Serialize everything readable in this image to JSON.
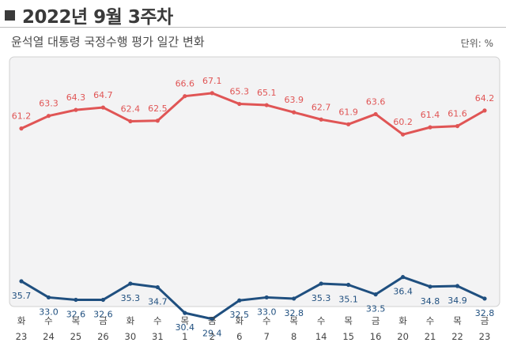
{
  "header": {
    "title": "2022년 9월 3주차",
    "subtitle": "윤석열 대통령 국정수행 평가 일간 변화",
    "unit": "단위: %"
  },
  "chart_data": {
    "type": "line",
    "title": "윤석열 대통령 국정수행 평가 일간 변화",
    "ylabel": "",
    "xlabel": "",
    "ylim": [
      20,
      75
    ],
    "categories": [
      {
        "day": "화",
        "date": "23"
      },
      {
        "day": "수",
        "date": "24"
      },
      {
        "day": "목",
        "date": "25"
      },
      {
        "day": "금",
        "date": "26"
      },
      {
        "day": "화",
        "date": "30"
      },
      {
        "day": "수",
        "date": "31"
      },
      {
        "day": "목",
        "date": "1"
      },
      {
        "day": "금",
        "date": "2"
      },
      {
        "day": "화",
        "date": "6"
      },
      {
        "day": "수",
        "date": "7"
      },
      {
        "day": "목",
        "date": "8"
      },
      {
        "day": "수",
        "date": "14"
      },
      {
        "day": "목",
        "date": "15"
      },
      {
        "day": "금",
        "date": "16"
      },
      {
        "day": "화",
        "date": "20"
      },
      {
        "day": "수",
        "date": "21"
      },
      {
        "day": "목",
        "date": "22"
      },
      {
        "day": "금",
        "date": "23"
      }
    ],
    "series": [
      {
        "name": "",
        "color": "#e05555",
        "values": [
          61.2,
          63.3,
          64.3,
          64.7,
          62.4,
          62.5,
          66.6,
          67.1,
          65.3,
          65.1,
          63.9,
          62.7,
          61.9,
          63.6,
          60.2,
          61.4,
          61.6,
          64.2
        ]
      },
      {
        "name": "",
        "color": "#1f4f7f",
        "values": [
          35.7,
          33.0,
          32.6,
          32.6,
          35.3,
          34.7,
          30.4,
          29.4,
          32.5,
          33.0,
          32.8,
          35.3,
          35.1,
          33.5,
          36.4,
          34.8,
          34.9,
          32.8
        ]
      }
    ],
    "grid": false,
    "legend": "none"
  },
  "colors": {
    "panel_bg": "#f3f3f4",
    "panel_border": "#d0d0d0",
    "red_series": "#e05555",
    "blue_series": "#1f4f7f"
  }
}
